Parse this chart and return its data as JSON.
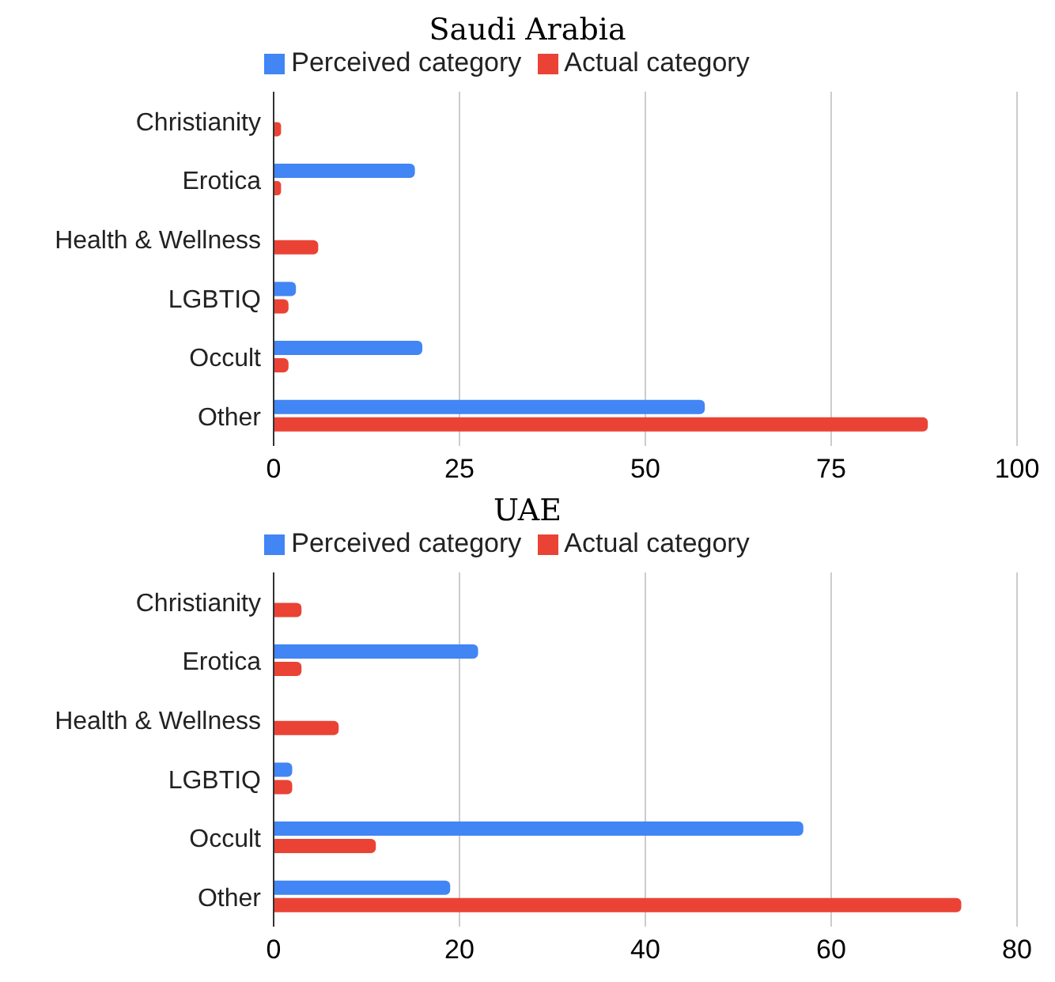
{
  "chart_data": [
    {
      "type": "bar",
      "orientation": "horizontal",
      "title": "Saudi Arabia",
      "categories": [
        "Christianity",
        "Erotica",
        "Health & Wellness",
        "LGBTIQ",
        "Occult",
        "Other"
      ],
      "series": [
        {
          "name": "Perceived category",
          "color": "#4285f4",
          "values": [
            0,
            19,
            0,
            3,
            20,
            58
          ]
        },
        {
          "name": "Actual category",
          "color": "#ea4335",
          "values": [
            1,
            1,
            6,
            2,
            2,
            88
          ]
        }
      ],
      "xlim": [
        0,
        100
      ],
      "xticks": [
        0,
        25,
        50,
        75,
        100
      ],
      "grid": "x",
      "legend": "top"
    },
    {
      "type": "bar",
      "orientation": "horizontal",
      "title": "UAE",
      "categories": [
        "Christianity",
        "Erotica",
        "Health & Wellness",
        "LGBTIQ",
        "Occult",
        "Other"
      ],
      "series": [
        {
          "name": "Perceived category",
          "color": "#4285f4",
          "values": [
            0,
            22,
            0,
            2,
            57,
            19
          ]
        },
        {
          "name": "Actual category",
          "color": "#ea4335",
          "values": [
            3,
            3,
            7,
            2,
            11,
            74
          ]
        }
      ],
      "xlim": [
        0,
        80
      ],
      "xticks": [
        0,
        20,
        40,
        60,
        80
      ],
      "grid": "x",
      "legend": "top"
    }
  ]
}
